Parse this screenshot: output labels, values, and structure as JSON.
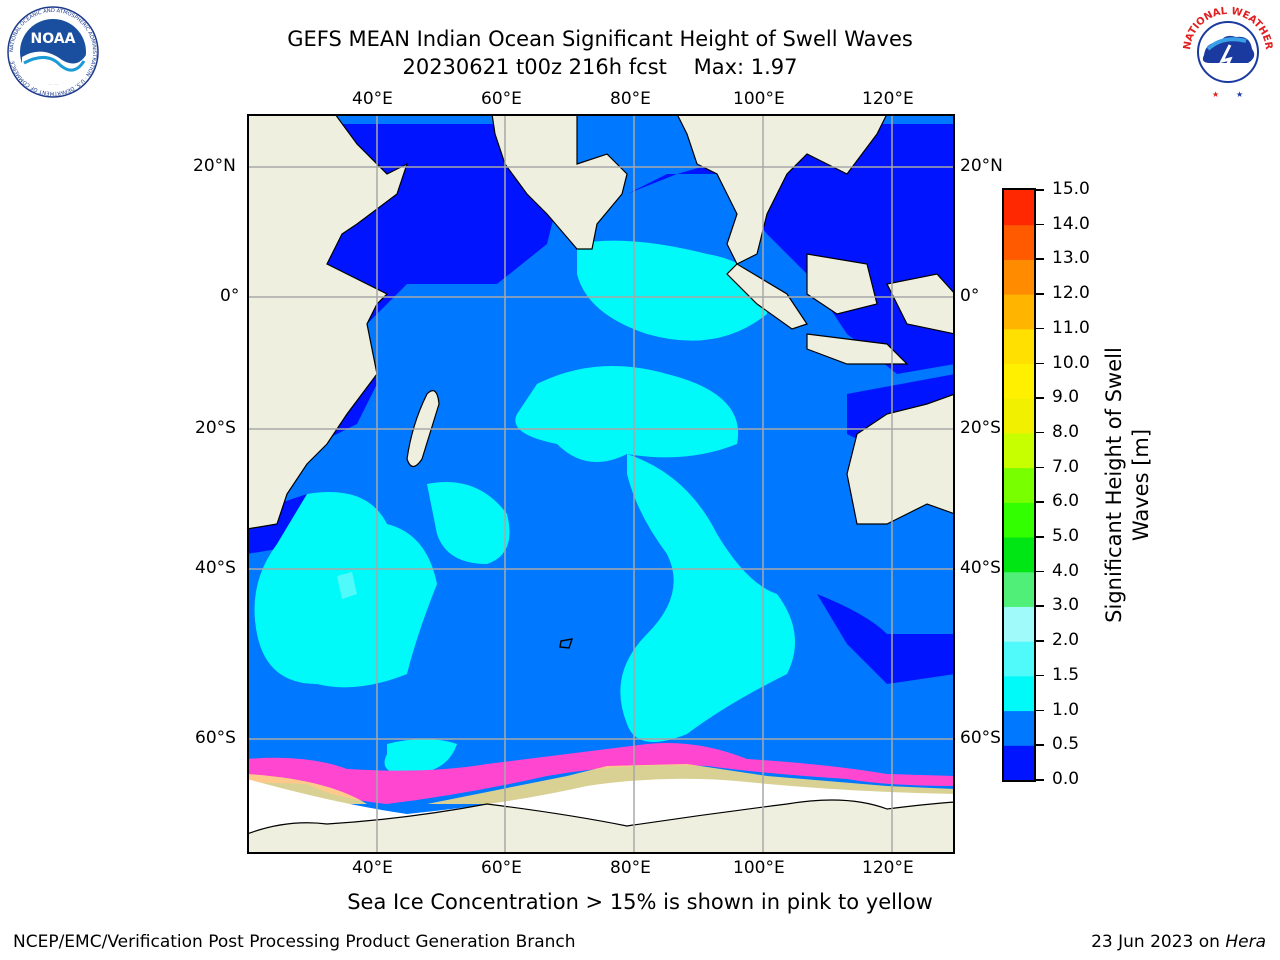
{
  "title": {
    "line1": "GEFS MEAN Indian Ocean Significant Height of Swell Waves",
    "run": "20230621 t00z 216h fcst",
    "max": "Max: 1.97"
  },
  "map": {
    "lon_labels": [
      "40°E",
      "60°E",
      "80°E",
      "100°E",
      "120°E"
    ],
    "lat_labels": [
      "20°N",
      "0°",
      "20°S",
      "40°S",
      "60°S"
    ],
    "colors": {
      "land": "#efefdf",
      "ice": "#ffffff",
      "grid": "#a8a8a8",
      "coast": "#000000"
    }
  },
  "colorbar": {
    "title": "Significant Height of Swell Waves [m]",
    "title_line1": "Significant Height of Swell",
    "title_line2": "Waves [m]",
    "levels": [
      "0.0",
      "0.5",
      "1.0",
      "1.5",
      "2.0",
      "3.0",
      "4.0",
      "5.0",
      "6.0",
      "7.0",
      "8.0",
      "9.0",
      "10.0",
      "11.0",
      "12.0",
      "13.0",
      "14.0",
      "15.0"
    ],
    "colors": [
      "#0014ff",
      "#0078ff",
      "#00fafa",
      "#50fafa",
      "#a0fafa",
      "#50f078",
      "#00e614",
      "#32ff00",
      "#78ff00",
      "#c8ff00",
      "#f0f000",
      "#fff000",
      "#ffe000",
      "#ffb400",
      "#ff8c00",
      "#ff5a00",
      "#ff2800"
    ]
  },
  "caption": "Sea Ice Concentration > 15% is shown in pink to yellow",
  "footer": {
    "left": "NCEP/EMC/Verification Post Processing Product Generation Branch",
    "right_prefix": "23 Jun 2023 on ",
    "right_host": "Hera"
  },
  "logos": {
    "noaa": {
      "text": "NOAA",
      "ring": "NATIONAL OCEANIC AND ATMOSPHERIC ADMINISTRATION · U.S. DEPARTMENT OF COMMERCE"
    },
    "nws": {
      "ring": "NATIONAL WEATHER SERVICE"
    }
  }
}
